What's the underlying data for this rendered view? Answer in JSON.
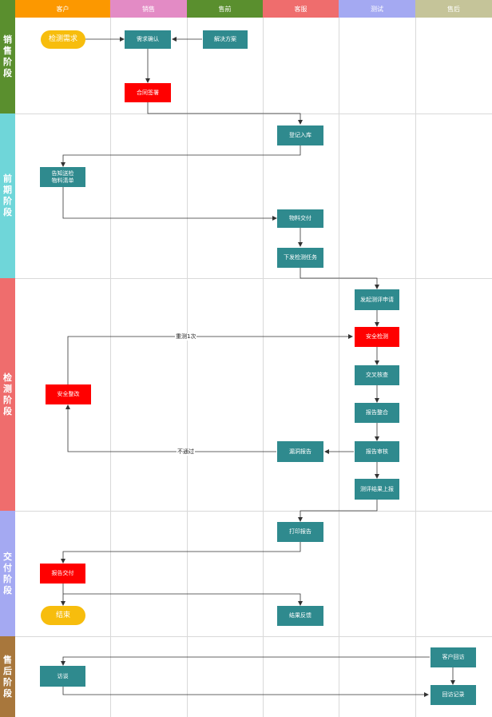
{
  "lanes": [
    {
      "label": "客户",
      "color": "#fc9800"
    },
    {
      "label": "销售",
      "color": "#e38bc5"
    },
    {
      "label": "售前",
      "color": "#5a8f2e"
    },
    {
      "label": "客服",
      "color": "#ef6d6d"
    },
    {
      "label": "测试",
      "color": "#a4a9f2"
    },
    {
      "label": "售后",
      "color": "#c5c499"
    }
  ],
  "phases": [
    {
      "label": "销售阶段",
      "color": "#5a8f2e"
    },
    {
      "label": "前期阶段",
      "color": "#6fd6d9"
    },
    {
      "label": "检测阶段",
      "color": "#ef6d6d"
    },
    {
      "label": "交付阶段",
      "color": "#a4a9f2"
    },
    {
      "label": "售后阶段",
      "color": "#a8773c"
    }
  ],
  "nodes": {
    "detect_demand": "检测需求",
    "demand_confirm": "需求确认",
    "solution": "解决方案",
    "contract": "合同签署",
    "register": "登记入库",
    "notify_line1": "告知送检",
    "notify_line2": "物料清单",
    "material_delivery": "物料交付",
    "issue_task": "下发检测任务",
    "test_apply": "发起测评申请",
    "security_test": "安全检测",
    "cross_check": "交叉核查",
    "report_merge": "报告整合",
    "report_audit": "报告审核",
    "vuln_report": "漏洞报告",
    "security_fix": "安全整改",
    "result_submit": "测评结果上报",
    "print_report": "打印报告",
    "report_delivery": "报告交付",
    "end": "结束",
    "result_feedback": "结果反馈",
    "customer_visit": "客户回访",
    "interview": "访谈",
    "visit_record": "回访记录"
  },
  "edge_labels": {
    "retest_once": "重测1次",
    "fail": "不通过"
  }
}
